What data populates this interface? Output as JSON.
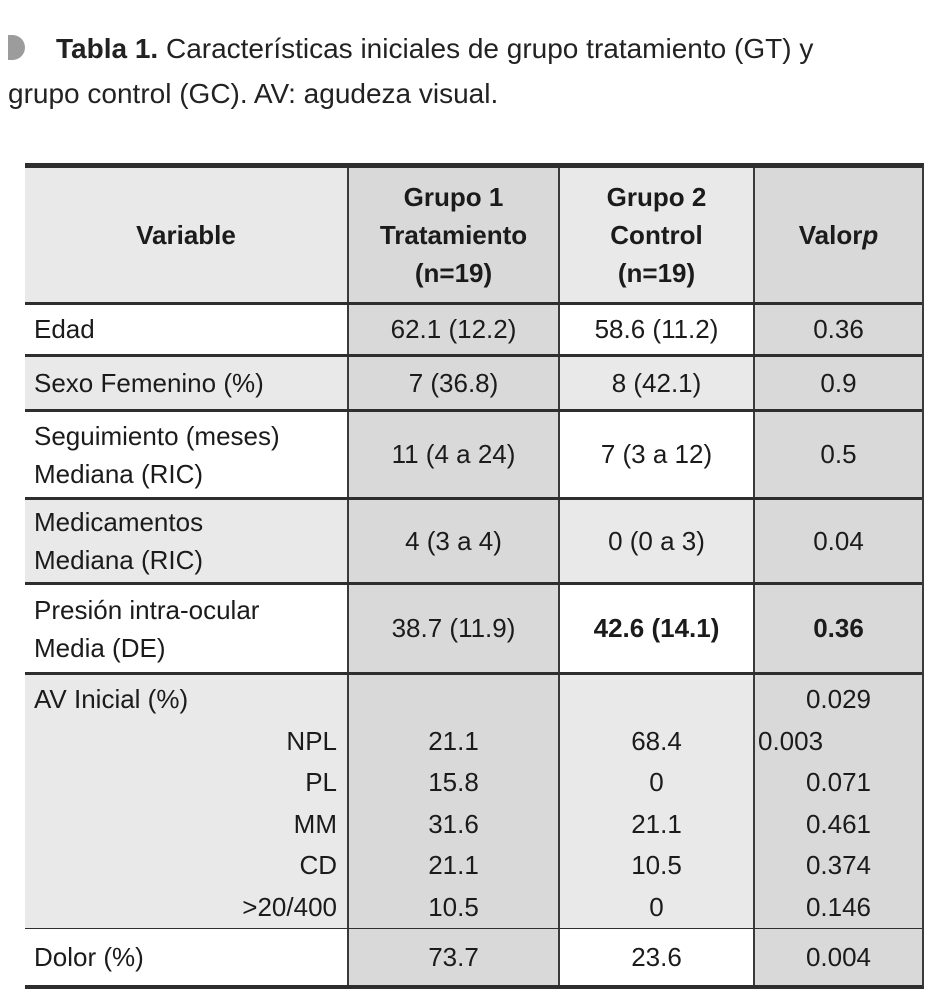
{
  "colors": {
    "cell_dark": "#d9d9d9",
    "cell_light": "#e9e9e9",
    "border": "#2e2e2e",
    "caption_marker": "#9c9c9c"
  },
  "caption": {
    "label": "Tabla 1.",
    "line1_rest": " Características iniciales de grupo tratamiento (GT) y",
    "line2": "grupo control (GC). AV: agudeza visual."
  },
  "table": {
    "header": {
      "variable": "Variable",
      "gt_lines": [
        "Grupo 1",
        "Tratamiento",
        "(n=19)"
      ],
      "gc_lines": [
        "Grupo 2",
        "Control",
        "(n=19)"
      ],
      "p_label": "Valor ",
      "p_symbol": "p"
    },
    "rows": [
      {
        "label": "Edad",
        "gt": "62.1 (12.2)",
        "gc": "58.6 (11.2)",
        "p": "0.36"
      },
      {
        "label": "Sexo Femenino (%)",
        "gt": "7 (36.8)",
        "gc": "8 (42.1)",
        "p": "0.9"
      },
      {
        "label1": "Seguimiento (meses)",
        "label2": "Mediana (RIC)",
        "gt": "11 (4 a 24)",
        "gc": "7 (3 a 12)",
        "p": "0.5"
      },
      {
        "label1": "Medicamentos",
        "label2": "Mediana (RIC)",
        "gt": "4 (3 a 4)",
        "gc": "0 (0 a 3)",
        "p": "0.04"
      },
      {
        "label1": "Presión intra-ocular",
        "label2": "Media (DE)",
        "gt": "38.7 (11.9)",
        "gc": "42.6 (14.1)",
        "p": "0.36"
      }
    ],
    "av": {
      "label": "AV Inicial (%)",
      "p": "0.029",
      "items": [
        {
          "label": "NPL",
          "gt": "21.1",
          "gc": "68.4",
          "p": "0.003"
        },
        {
          "label": "PL",
          "gt": "15.8",
          "gc": "0",
          "p": "0.071"
        },
        {
          "label": "MM",
          "gt": "31.6",
          "gc": "21.1",
          "p": "0.461"
        },
        {
          "label": "CD",
          "gt": "21.1",
          "gc": "10.5",
          "p": "0.374"
        },
        {
          "label": ">20/400",
          "gt": "10.5",
          "gc": "0",
          "p": "0.146"
        }
      ]
    },
    "last_row": {
      "label": "Dolor (%)",
      "gt": "73.7",
      "gc": "23.6",
      "p": "0.004"
    }
  }
}
